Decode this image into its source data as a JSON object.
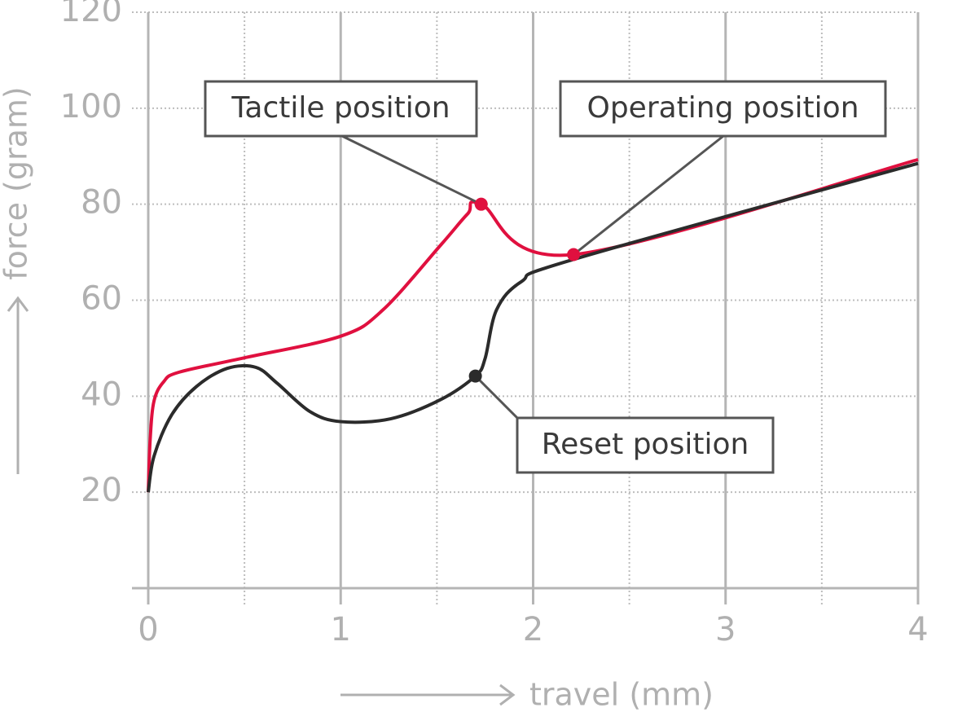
{
  "chart_data": {
    "type": "line",
    "x_label": "travel (mm)",
    "y_label": "force (gram)",
    "xlim": [
      0,
      4
    ],
    "xticks": [
      0,
      1,
      2,
      3,
      4
    ],
    "x_minor_ticks": [
      0.5,
      1.5,
      2.5,
      3.5
    ],
    "ylim": [
      0,
      120
    ],
    "yticks": [
      20,
      40,
      60,
      80,
      100,
      120
    ],
    "grid": true,
    "series": [
      {
        "color": "#e0103f",
        "x": [
          0,
          0.01,
          0.03,
          0.08,
          0.16,
          0.5,
          1.0,
          1.22,
          1.52,
          1.66,
          1.73,
          2.21,
          4
        ],
        "values": [
          20,
          31,
          39,
          43,
          45,
          48,
          52.5,
          58,
          71.5,
          78,
          80,
          69.5,
          89.3
        ]
      },
      {
        "color": "#2b2b2b",
        "x": [
          0,
          0.03,
          0.12,
          0.25,
          0.41,
          0.56,
          0.67,
          0.84,
          1.0,
          1.26,
          1.52,
          1.7,
          1.75,
          1.81,
          1.94,
          2.21,
          4
        ],
        "values": [
          20,
          27.5,
          36,
          42,
          45.8,
          46,
          42.7,
          36.8,
          34.7,
          35.3,
          39.3,
          44.2,
          47.8,
          58,
          63.9,
          68.5,
          88.5
        ]
      }
    ],
    "annotations": [
      {
        "text": "Tactile position",
        "x": 1.73,
        "y": 80,
        "color": "#e0103f"
      },
      {
        "text": "Operating position",
        "x": 2.21,
        "y": 69.5,
        "color": "#e0103f"
      },
      {
        "text": "Reset position",
        "x": 1.7,
        "y": 44.2,
        "color": "#2b2b2b"
      }
    ]
  }
}
